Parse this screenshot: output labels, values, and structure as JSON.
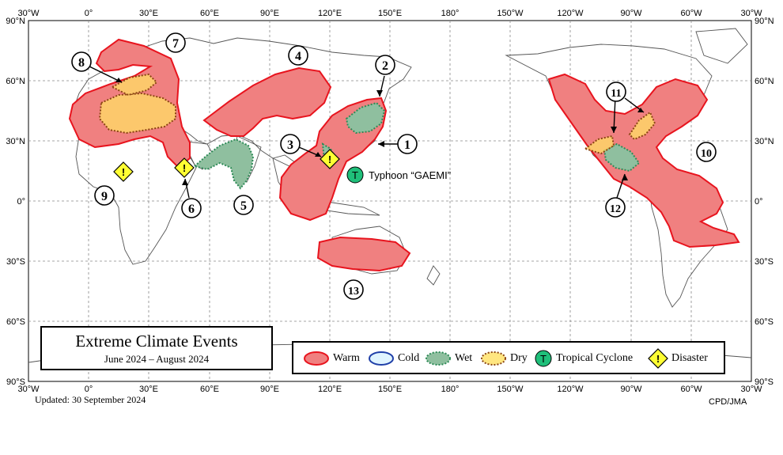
{
  "map": {
    "top_lon_labels": [
      "30°W",
      "0°",
      "30°E",
      "60°E",
      "90°E",
      "120°E",
      "150°E",
      "180°",
      "150°W",
      "120°W",
      "90°W",
      "60°W",
      "30°W"
    ],
    "bottom_lon_labels": [
      "30°W",
      "0°",
      "30°E",
      "60°E",
      "90°E",
      "120°E",
      "150°E",
      "180°",
      "150°W",
      "120°W",
      "90°W",
      "60°W",
      "30°W"
    ],
    "left_lat_labels": [
      "90°N",
      "60°N",
      "30°N",
      "0°",
      "30°S",
      "60°S",
      "90°S"
    ],
    "right_lat_labels": [
      "90°N",
      "60°N",
      "30°N",
      "0°",
      "30°S",
      "60°S",
      "90°S"
    ]
  },
  "events": [
    {
      "id": "1",
      "label": "1",
      "category": "Warm"
    },
    {
      "id": "2",
      "label": "2",
      "category": "Wet"
    },
    {
      "id": "3",
      "label": "3",
      "category": "Disaster"
    },
    {
      "id": "4",
      "label": "4",
      "category": "Warm"
    },
    {
      "id": "5",
      "label": "5",
      "category": "Wet"
    },
    {
      "id": "6",
      "label": "6",
      "category": "Disaster"
    },
    {
      "id": "7",
      "label": "7",
      "category": "Warm"
    },
    {
      "id": "8",
      "label": "8",
      "category": "Dry"
    },
    {
      "id": "9",
      "label": "9",
      "category": "Disaster"
    },
    {
      "id": "10",
      "label": "10",
      "category": "Warm"
    },
    {
      "id": "11",
      "label": "11",
      "category": "Dry"
    },
    {
      "id": "12",
      "label": "12",
      "category": "Wet"
    },
    {
      "id": "13",
      "label": "13",
      "category": "Warm"
    }
  ],
  "typhoon": {
    "symbol": "T",
    "label": "Typhoon “GAEMI”"
  },
  "title": {
    "main": "Extreme Climate Events",
    "period": "June 2024 – August 2024"
  },
  "legend": {
    "warm": "Warm",
    "cold": "Cold",
    "wet": "Wet",
    "dry": "Dry",
    "tropical_cyclone": "Tropical  Cyclone",
    "tc_symbol": "T",
    "disaster": "Disaster",
    "disaster_symbol": "!"
  },
  "updated": "Updated:  30 September 2024",
  "credit": "CPD/JMA",
  "colors": {
    "warm_fill": "#f08080",
    "warm_stroke": "#e8141e",
    "wet_fill": "#8fbf9f",
    "wet_stroke": "#2e8b57",
    "dry_fill": "#ffe680",
    "dry_stroke": "#8b4513",
    "cold_fill": "#e0f4ff",
    "cold_stroke": "#1f3fa8",
    "tc_fill": "#1fbf7a",
    "disaster_fill": "#ffff33"
  }
}
